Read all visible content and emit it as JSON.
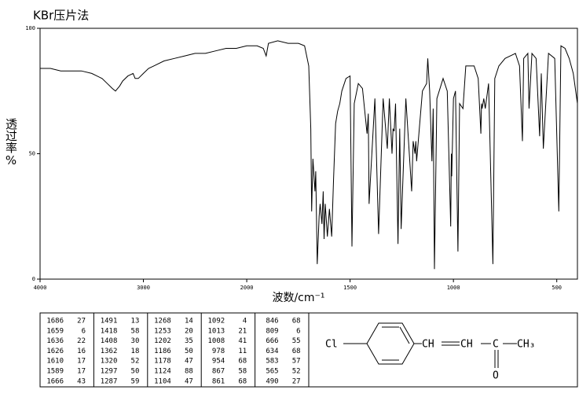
{
  "chart_data": {
    "type": "line",
    "title": "KBr压片法",
    "x_label": "波数/cm⁻¹",
    "y_label": "透过率%",
    "xlim": [
      4000,
      400
    ],
    "x_scale_break": 2000,
    "xticks": [
      4000,
      3000,
      2000,
      1500,
      1000,
      500
    ],
    "ylim": [
      0,
      100
    ],
    "yticks": [
      0,
      50,
      100
    ],
    "color": "#000000",
    "x": [
      4000,
      3900,
      3800,
      3700,
      3600,
      3500,
      3400,
      3350,
      3300,
      3270,
      3230,
      3200,
      3150,
      3100,
      3080,
      3050,
      3000,
      2950,
      2900,
      2800,
      2700,
      2600,
      2500,
      2400,
      2300,
      2200,
      2100,
      2000,
      1950,
      1920,
      1906,
      1895,
      1850,
      1800,
      1750,
      1720,
      1700,
      1690,
      1686,
      1680,
      1670,
      1666,
      1659,
      1650,
      1645,
      1636,
      1630,
      1626,
      1620,
      1610,
      1600,
      1589,
      1580,
      1570,
      1560,
      1550,
      1540,
      1520,
      1500,
      1491,
      1480,
      1460,
      1440,
      1418,
      1412,
      1408,
      1380,
      1362,
      1340,
      1320,
      1310,
      1297,
      1292,
      1287,
      1280,
      1268,
      1260,
      1253,
      1230,
      1202,
      1195,
      1186,
      1182,
      1178,
      1150,
      1130,
      1124,
      1115,
      1104,
      1098,
      1092,
      1080,
      1050,
      1030,
      1013,
      1010,
      1008,
      1000,
      990,
      978,
      970,
      954,
      940,
      900,
      880,
      867,
      864,
      861,
      853,
      846,
      830,
      809,
      800,
      780,
      750,
      700,
      680,
      666,
      660,
      640,
      634,
      620,
      600,
      583,
      575,
      565,
      540,
      510,
      490,
      480,
      460,
      440,
      420,
      400
    ],
    "values": [
      84,
      84,
      83,
      83,
      83,
      82,
      80,
      78,
      76,
      75,
      77,
      79,
      81,
      82,
      80,
      80,
      82,
      84,
      85,
      87,
      88,
      89,
      90,
      90,
      91,
      92,
      92,
      93,
      93,
      92,
      89,
      94,
      95,
      94,
      94,
      93,
      85,
      60,
      27,
      48,
      35,
      43,
      6,
      25,
      30,
      22,
      35,
      16,
      30,
      17,
      28,
      17,
      40,
      62,
      67,
      70,
      75,
      80,
      81,
      13,
      70,
      78,
      76,
      58,
      66,
      30,
      72,
      18,
      72,
      52,
      72,
      50,
      60,
      59,
      70,
      14,
      60,
      20,
      72,
      35,
      55,
      50,
      55,
      47,
      75,
      78,
      88,
      75,
      47,
      68,
      4,
      72,
      80,
      75,
      21,
      50,
      41,
      72,
      75,
      11,
      70,
      68,
      85,
      85,
      80,
      58,
      70,
      68,
      72,
      68,
      78,
      6,
      80,
      85,
      88,
      90,
      85,
      55,
      88,
      90,
      68,
      90,
      88,
      57,
      82,
      52,
      90,
      88,
      27,
      93,
      92,
      88,
      82,
      70
    ]
  },
  "peak_table": {
    "columns": [
      [
        [
          "1686",
          "27"
        ],
        [
          "1659",
          "6"
        ],
        [
          "1636",
          "22"
        ],
        [
          "1626",
          "16"
        ],
        [
          "1610",
          "17"
        ],
        [
          "1589",
          "17"
        ],
        [
          "1666",
          "43"
        ]
      ],
      [
        [
          "1491",
          "13"
        ],
        [
          "1418",
          "58"
        ],
        [
          "1408",
          "30"
        ],
        [
          "1362",
          "18"
        ],
        [
          "1320",
          "52"
        ],
        [
          "1297",
          "50"
        ],
        [
          "1287",
          "59"
        ]
      ],
      [
        [
          "1268",
          "14"
        ],
        [
          "1253",
          "20"
        ],
        [
          "1202",
          "35"
        ],
        [
          "1186",
          "50"
        ],
        [
          "1178",
          "47"
        ],
        [
          "1124",
          "88"
        ],
        [
          "1104",
          "47"
        ]
      ],
      [
        [
          "1092",
          "4"
        ],
        [
          "1013",
          "21"
        ],
        [
          "1008",
          "41"
        ],
        [
          "978",
          "11"
        ],
        [
          "954",
          "68"
        ],
        [
          "867",
          "58"
        ],
        [
          "861",
          "68"
        ]
      ],
      [
        [
          "846",
          "68"
        ],
        [
          "809",
          "6"
        ],
        [
          "666",
          "55"
        ],
        [
          "634",
          "68"
        ],
        [
          "583",
          "57"
        ],
        [
          "565",
          "52"
        ],
        [
          "490",
          "27"
        ]
      ]
    ]
  },
  "structure": {
    "labels": [
      "Cl",
      "CH",
      "CH",
      "C",
      "CH₃",
      "O"
    ]
  }
}
